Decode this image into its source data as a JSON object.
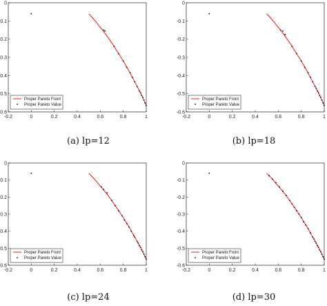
{
  "chart_data": [
    {
      "type": "line+scatter",
      "caption": "(a) lp=12",
      "xlim": [
        -0.2,
        1
      ],
      "ylim": [
        -0.6,
        0
      ],
      "xticks": [
        "-0.2",
        "0",
        "0.2",
        "0.4",
        "0.6",
        "0.8",
        "1"
      ],
      "yticks": [
        "0",
        "-0.1",
        "-0.2",
        "-0.3",
        "-0.4",
        "-0.5",
        "-0.6"
      ],
      "legend_position": "lower-left",
      "series": [
        {
          "name": "Proper Pareto Front",
          "kind": "line",
          "color": "#ff0000",
          "x": [
            0.5,
            0.55,
            0.6,
            0.65,
            0.7,
            0.75,
            0.8,
            0.85,
            0.9,
            0.95,
            1.0
          ],
          "y": [
            -0.06,
            -0.095,
            -0.135,
            -0.175,
            -0.22,
            -0.27,
            -0.32,
            -0.375,
            -0.435,
            -0.495,
            -0.565
          ]
        },
        {
          "name": "Proper Pareto Value",
          "kind": "scatter",
          "color": "#000000",
          "x": [
            0.0,
            0.63,
            0.64,
            0.72,
            0.76,
            0.8,
            0.83,
            0.86,
            0.88,
            0.9,
            0.92,
            0.94,
            0.95,
            0.96,
            0.97,
            0.98,
            0.99,
            1.0
          ],
          "y": [
            -0.06,
            -0.15,
            -0.155,
            -0.24,
            -0.28,
            -0.32,
            -0.355,
            -0.385,
            -0.41,
            -0.435,
            -0.46,
            -0.485,
            -0.495,
            -0.51,
            -0.52,
            -0.535,
            -0.55,
            -0.565
          ]
        }
      ]
    },
    {
      "type": "line+scatter",
      "caption": "(b) lp=18",
      "xlim": [
        -0.2,
        1
      ],
      "ylim": [
        -0.6,
        0
      ],
      "xticks": [
        "-0.2",
        "0",
        "0.2",
        "0.4",
        "0.6",
        "0.8",
        "1"
      ],
      "yticks": [
        "0",
        "-0.1",
        "-0.2",
        "-0.3",
        "-0.4",
        "-0.5",
        "-0.6"
      ],
      "legend_position": "lower-left",
      "series": [
        {
          "name": "Proper Pareto Front",
          "kind": "line",
          "color": "#ff0000",
          "x": [
            0.5,
            0.55,
            0.6,
            0.65,
            0.7,
            0.75,
            0.8,
            0.85,
            0.9,
            0.95,
            1.0
          ],
          "y": [
            -0.06,
            -0.095,
            -0.135,
            -0.175,
            -0.22,
            -0.27,
            -0.32,
            -0.375,
            -0.435,
            -0.495,
            -0.565
          ]
        },
        {
          "name": "Proper Pareto Value",
          "kind": "scatter",
          "color": "#000000",
          "x": [
            0.0,
            0.62,
            0.64,
            0.66,
            0.72,
            0.76,
            0.8,
            0.83,
            0.86,
            0.88,
            0.9,
            0.92,
            0.93,
            0.94,
            0.95,
            0.96,
            0.97,
            0.98,
            0.99,
            1.0
          ],
          "y": [
            -0.06,
            -0.15,
            -0.155,
            -0.175,
            -0.24,
            -0.28,
            -0.32,
            -0.355,
            -0.385,
            -0.41,
            -0.435,
            -0.46,
            -0.47,
            -0.485,
            -0.495,
            -0.51,
            -0.52,
            -0.535,
            -0.55,
            -0.565
          ]
        }
      ]
    },
    {
      "type": "line+scatter",
      "caption": "(c) lp=24",
      "xlim": [
        -0.2,
        1
      ],
      "ylim": [
        -0.6,
        0
      ],
      "xticks": [
        "-0.2",
        "0",
        "0.2",
        "0.4",
        "0.6",
        "0.8",
        "1"
      ],
      "yticks": [
        "0",
        "-0.1",
        "-0.2",
        "-0.3",
        "-0.4",
        "-0.5",
        "-0.6"
      ],
      "legend_position": "lower-left",
      "series": [
        {
          "name": "Proper Pareto Front",
          "kind": "line",
          "color": "#ff0000",
          "x": [
            0.5,
            0.55,
            0.6,
            0.65,
            0.7,
            0.75,
            0.8,
            0.85,
            0.9,
            0.95,
            1.0
          ],
          "y": [
            -0.06,
            -0.095,
            -0.135,
            -0.175,
            -0.22,
            -0.27,
            -0.32,
            -0.375,
            -0.435,
            -0.495,
            -0.565
          ]
        },
        {
          "name": "Proper Pareto Value",
          "kind": "scatter",
          "color": "#000000",
          "x": [
            0.0,
            0.61,
            0.63,
            0.66,
            0.7,
            0.73,
            0.76,
            0.79,
            0.81,
            0.83,
            0.85,
            0.87,
            0.89,
            0.9,
            0.92,
            0.93,
            0.94,
            0.95,
            0.96,
            0.97,
            0.98,
            0.99,
            1.0
          ],
          "y": [
            -0.06,
            -0.14,
            -0.155,
            -0.175,
            -0.22,
            -0.25,
            -0.28,
            -0.31,
            -0.335,
            -0.355,
            -0.375,
            -0.4,
            -0.425,
            -0.435,
            -0.46,
            -0.47,
            -0.485,
            -0.495,
            -0.51,
            -0.52,
            -0.535,
            -0.55,
            -0.565
          ]
        }
      ]
    },
    {
      "type": "line+scatter",
      "caption": "(d) lp=30",
      "xlim": [
        -0.2,
        1
      ],
      "ylim": [
        -0.6,
        0
      ],
      "xticks": [
        "-0.2",
        "0",
        "0.2",
        "0.4",
        "0.6",
        "0.8",
        "1"
      ],
      "yticks": [
        "0",
        "-0.1",
        "-0.2",
        "-0.3",
        "-0.4",
        "-0.5",
        "-0.6"
      ],
      "legend_position": "lower-left",
      "series": [
        {
          "name": "Proper Pareto Front",
          "kind": "line",
          "color": "#ff0000",
          "x": [
            0.5,
            0.55,
            0.6,
            0.65,
            0.7,
            0.75,
            0.8,
            0.85,
            0.9,
            0.95,
            1.0
          ],
          "y": [
            -0.06,
            -0.095,
            -0.135,
            -0.175,
            -0.22,
            -0.27,
            -0.32,
            -0.375,
            -0.435,
            -0.495,
            -0.565
          ]
        },
        {
          "name": "Proper Pareto Value",
          "kind": "scatter",
          "color": "#000000",
          "x": [
            0.0,
            0.52,
            0.55,
            0.58,
            0.61,
            0.64,
            0.67,
            0.7,
            0.72,
            0.74,
            0.76,
            0.78,
            0.8,
            0.82,
            0.84,
            0.86,
            0.88,
            0.9,
            0.91,
            0.92,
            0.93,
            0.94,
            0.95,
            0.96,
            0.97,
            0.98,
            0.99,
            1.0
          ],
          "y": [
            -0.06,
            -0.075,
            -0.095,
            -0.115,
            -0.14,
            -0.165,
            -0.19,
            -0.22,
            -0.24,
            -0.26,
            -0.28,
            -0.3,
            -0.32,
            -0.345,
            -0.365,
            -0.385,
            -0.41,
            -0.435,
            -0.445,
            -0.46,
            -0.47,
            -0.485,
            -0.495,
            -0.51,
            -0.52,
            -0.535,
            -0.55,
            -0.565
          ]
        }
      ]
    }
  ]
}
